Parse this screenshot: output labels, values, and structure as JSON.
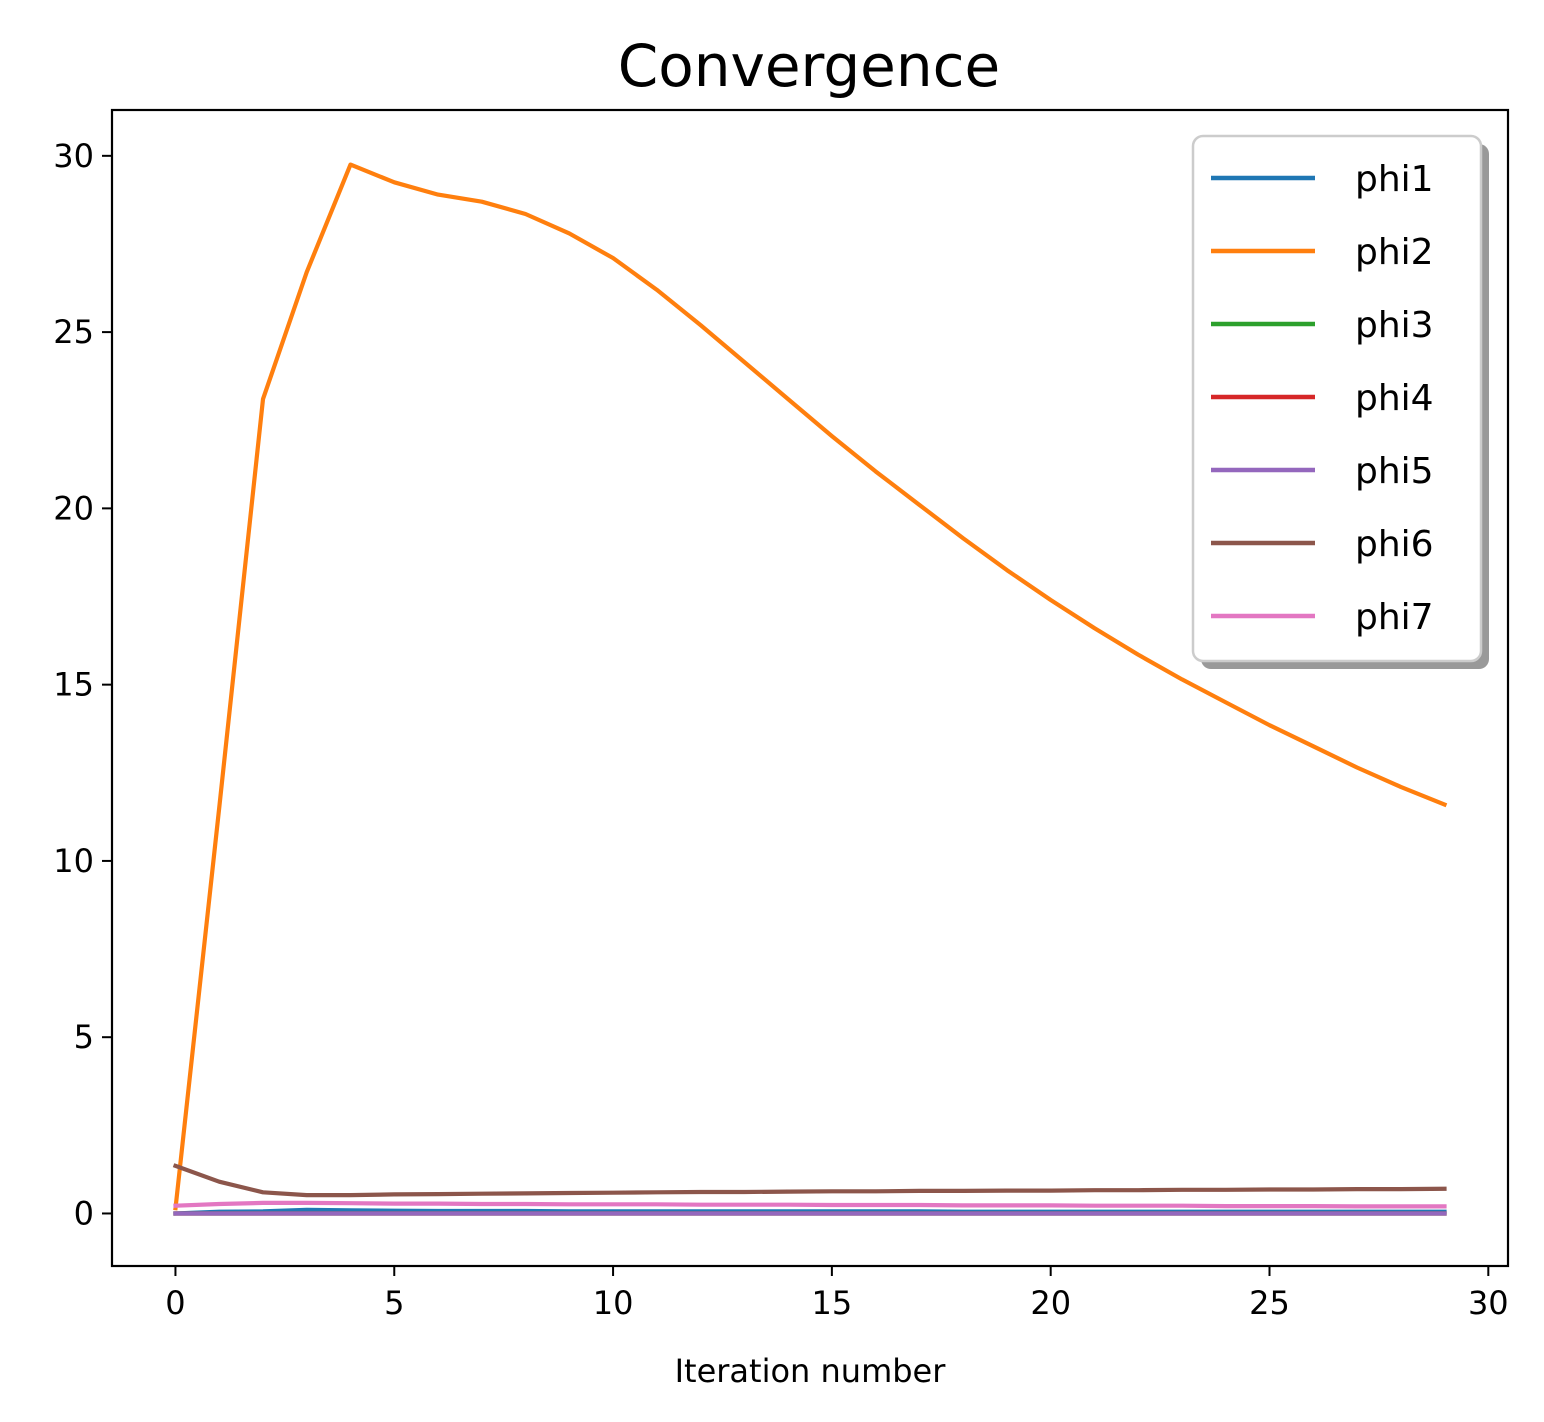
{
  "chart_data": {
    "type": "line",
    "title": "Convergence",
    "xlabel": "Iteration number",
    "ylabel": "",
    "xlim": [
      -1.45,
      30.45
    ],
    "ylim": [
      -1.49,
      31.3
    ],
    "xticks": [
      0,
      5,
      10,
      15,
      20,
      25,
      30
    ],
    "yticks": [
      0,
      5,
      10,
      15,
      20,
      25,
      30
    ],
    "grid": false,
    "legend": "top-right",
    "x": [
      0,
      1,
      2,
      3,
      4,
      5,
      6,
      7,
      8,
      9,
      10,
      11,
      12,
      13,
      14,
      15,
      16,
      17,
      18,
      19,
      20,
      21,
      22,
      23,
      24,
      25,
      26,
      27,
      28,
      29
    ],
    "series": [
      {
        "name": "phi1",
        "color": "#1f77b4",
        "values": [
          0.0,
          0.05,
          0.06,
          0.1,
          0.09,
          0.08,
          0.07,
          0.07,
          0.07,
          0.06,
          0.06,
          0.06,
          0.06,
          0.06,
          0.06,
          0.06,
          0.06,
          0.06,
          0.05,
          0.05,
          0.05,
          0.05,
          0.05,
          0.05,
          0.05,
          0.05,
          0.05,
          0.05,
          0.05,
          0.05
        ]
      },
      {
        "name": "phi2",
        "color": "#ff7f0e",
        "values": [
          0.15,
          11.5,
          23.1,
          26.7,
          29.75,
          29.25,
          28.9,
          28.7,
          28.35,
          27.8,
          27.1,
          26.2,
          25.2,
          24.15,
          23.1,
          22.05,
          21.05,
          20.1,
          19.15,
          18.25,
          17.4,
          16.6,
          15.85,
          15.15,
          14.5,
          13.85,
          13.25,
          12.65,
          12.1,
          11.6
        ]
      },
      {
        "name": "phi3",
        "color": "#2ca02c",
        "values": [
          0.0,
          0.0,
          0.0,
          0.0,
          0.0,
          0.0,
          0.0,
          0.0,
          0.0,
          0.0,
          0.0,
          0.0,
          0.0,
          0.0,
          0.0,
          0.0,
          0.0,
          0.0,
          0.0,
          0.0,
          0.0,
          0.0,
          0.0,
          0.0,
          0.0,
          0.0,
          0.0,
          0.0,
          0.0,
          0.0
        ]
      },
      {
        "name": "phi4",
        "color": "#d62728",
        "values": [
          0.0,
          0.0,
          0.0,
          0.0,
          0.0,
          0.0,
          0.0,
          0.0,
          0.0,
          0.0,
          0.0,
          0.0,
          0.0,
          0.0,
          0.0,
          0.0,
          0.0,
          0.0,
          0.0,
          0.0,
          0.0,
          0.0,
          0.0,
          0.0,
          0.0,
          0.0,
          0.0,
          0.0,
          0.0,
          0.0
        ]
      },
      {
        "name": "phi5",
        "color": "#9467bd",
        "values": [
          0.0,
          0.0,
          0.0,
          0.0,
          0.0,
          0.0,
          0.0,
          0.0,
          0.0,
          0.0,
          0.0,
          0.0,
          0.0,
          0.0,
          0.0,
          0.0,
          0.0,
          0.0,
          0.0,
          0.0,
          0.0,
          0.0,
          0.0,
          0.0,
          0.0,
          0.0,
          0.0,
          0.0,
          0.0,
          0.0
        ]
      },
      {
        "name": "phi6",
        "color": "#8c564b",
        "values": [
          1.35,
          0.9,
          0.6,
          0.52,
          0.52,
          0.54,
          0.55,
          0.56,
          0.57,
          0.58,
          0.59,
          0.6,
          0.61,
          0.61,
          0.62,
          0.63,
          0.63,
          0.64,
          0.64,
          0.65,
          0.65,
          0.66,
          0.66,
          0.67,
          0.67,
          0.68,
          0.68,
          0.69,
          0.69,
          0.7
        ]
      },
      {
        "name": "phi7",
        "color": "#e377c2",
        "values": [
          0.22,
          0.27,
          0.3,
          0.3,
          0.29,
          0.28,
          0.28,
          0.27,
          0.27,
          0.26,
          0.26,
          0.26,
          0.25,
          0.25,
          0.25,
          0.24,
          0.24,
          0.24,
          0.23,
          0.23,
          0.23,
          0.22,
          0.22,
          0.22,
          0.21,
          0.21,
          0.21,
          0.2,
          0.2,
          0.2
        ]
      }
    ]
  }
}
